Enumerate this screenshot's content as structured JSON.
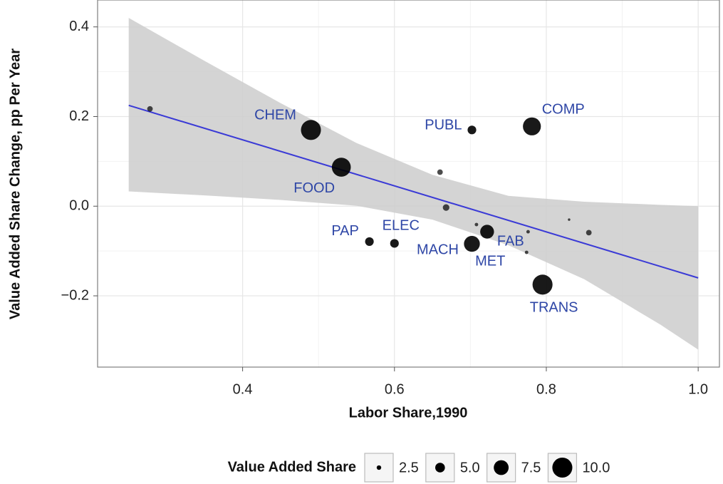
{
  "chart_data": {
    "type": "scatter",
    "x_label": "Labor Share,1990",
    "y_label": "Value Added Share Change, pp Per Year",
    "x": [
      0.278,
      0.49,
      0.53,
      0.702,
      0.781,
      0.66,
      0.668,
      0.708,
      0.722,
      0.776,
      0.83,
      0.856,
      0.567,
      0.6,
      0.702,
      0.774,
      0.795
    ],
    "values": [
      0.217,
      0.17,
      0.087,
      0.17,
      0.178,
      0.076,
      -0.003,
      -0.041,
      -0.057,
      -0.057,
      -0.03,
      -0.059,
      -0.079,
      -0.083,
      -0.084,
      -0.103,
      -0.175
    ],
    "sizes": [
      3,
      10,
      9.5,
      4.5,
      9,
      3,
      3.5,
      2,
      7,
      2,
      1.5,
      3,
      4.5,
      4.5,
      8,
      2,
      10
    ],
    "labels": [
      null,
      "CHEM",
      "FOOD",
      "PUBL",
      "COMP",
      null,
      null,
      null,
      "FAB",
      null,
      null,
      null,
      "PAP",
      "ELEC",
      "MACH",
      "MET",
      "TRANS"
    ],
    "color": "#000000",
    "label_color": "#2e46a6",
    "fit": {
      "x": [
        0.25,
        1.0
      ],
      "values": [
        0.225,
        -0.16
      ],
      "color": "#3a3ad6"
    },
    "band": {
      "x": [
        0.25,
        0.35,
        0.45,
        0.55,
        0.65,
        0.75,
        0.85,
        0.95,
        1.0
      ],
      "upper": [
        0.42,
        0.324,
        0.23,
        0.141,
        0.07,
        0.023,
        0.01,
        0.003,
        0.0
      ],
      "lower": [
        0.033,
        0.024,
        0.014,
        0.001,
        -0.03,
        -0.087,
        -0.163,
        -0.264,
        -0.32
      ],
      "color": "#cccccc"
    },
    "xlim": [
      0.209,
      1.028
    ],
    "ylim": [
      -0.359,
      0.46
    ],
    "xticks": [
      0.4,
      0.6,
      0.8,
      {
        "value": 1.0,
        "label": "1.0"
      }
    ],
    "yticks": [
      {
        "value": -0.2,
        "label": "−0.2"
      },
      {
        "value": 0.0,
        "label": "0.0"
      },
      0.2,
      0.4
    ],
    "grid": true,
    "legend": {
      "title": "Value Added Share",
      "position": "bottom",
      "values": [
        {
          "value": 2.5,
          "label": "2.5"
        },
        {
          "value": 5.0,
          "label": "5.0"
        },
        {
          "value": 7.5,
          "label": "7.5"
        },
        {
          "value": 10.0,
          "label": "10.0"
        }
      ]
    }
  }
}
